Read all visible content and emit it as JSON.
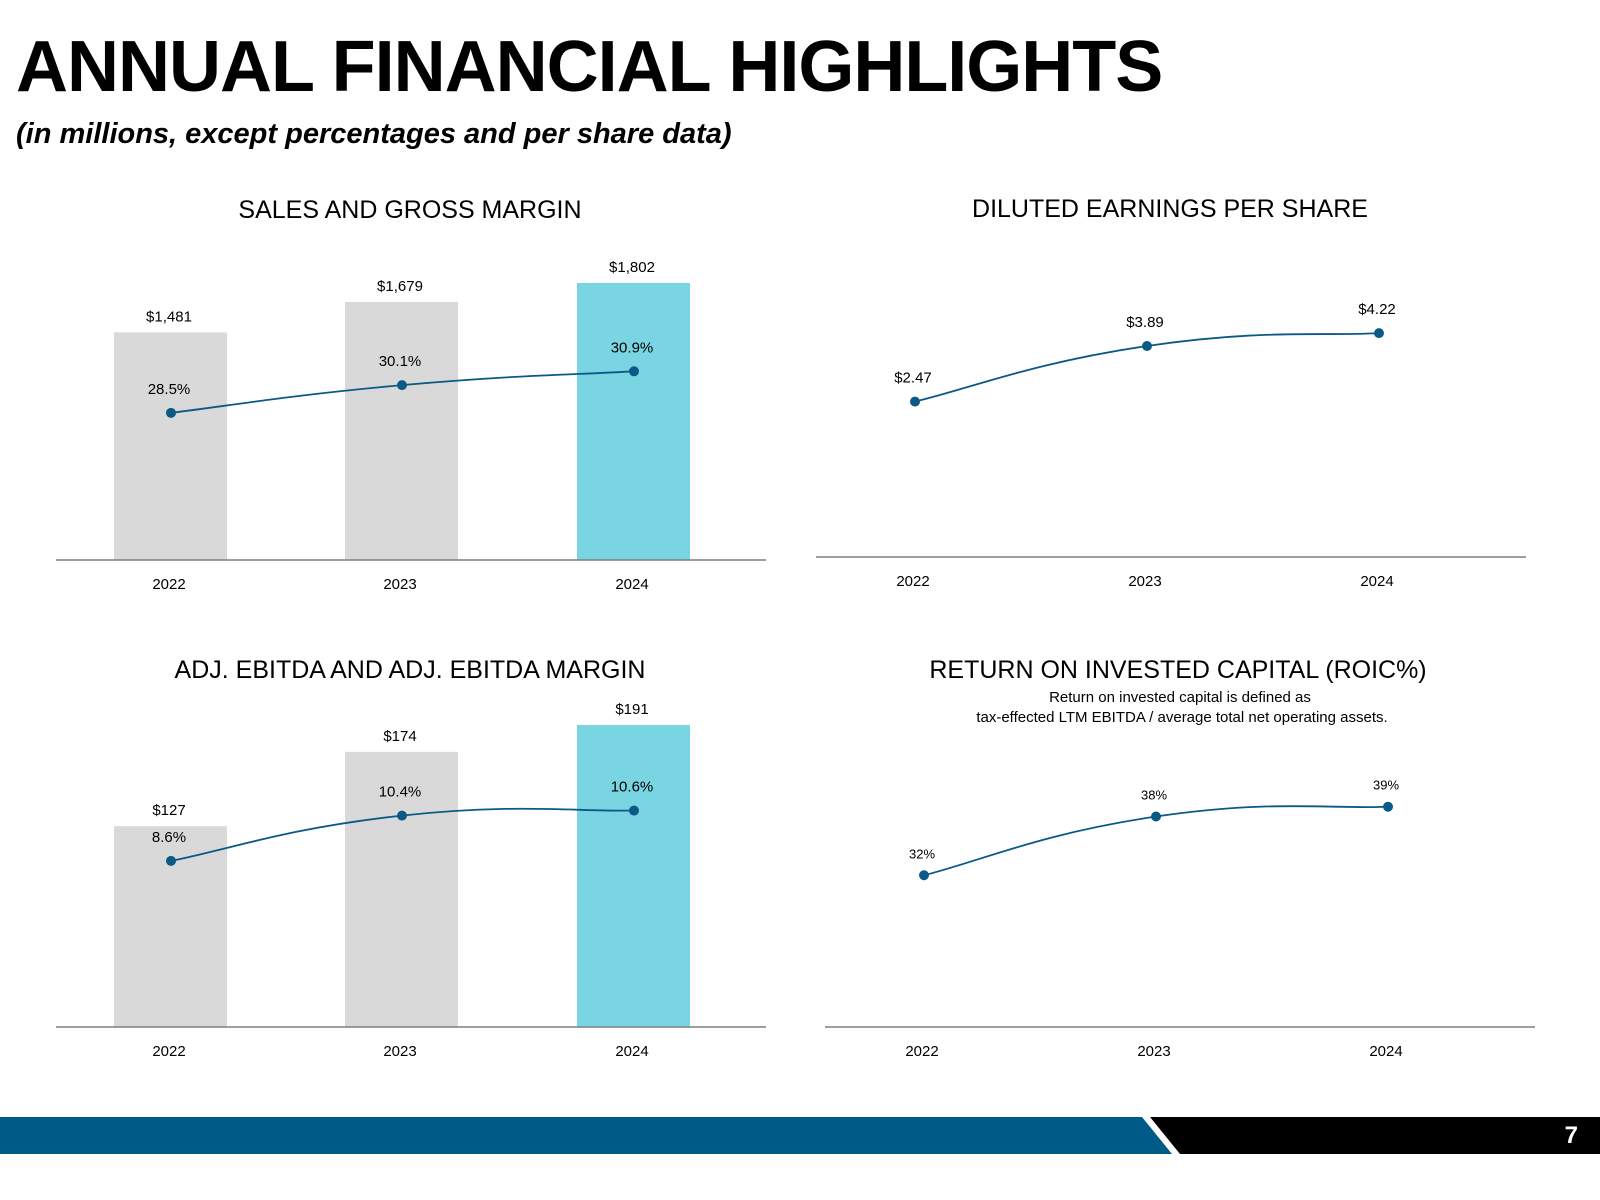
{
  "page": {
    "title": "ANNUAL FINANCIAL HIGHLIGHTS",
    "subtitle": "(in millions, except percentages and per share data)",
    "page_number": "7"
  },
  "colors": {
    "bar_default": "#d9d9d9",
    "bar_highlight": "#79d5e2",
    "line": "#0b5a85",
    "axis": "#7f7f7f",
    "footer_blue": "#005a87",
    "footer_black": "#000000"
  },
  "chart_data": [
    {
      "type": "bar",
      "title": "SALES AND GROSS MARGIN",
      "categories": [
        "2022",
        "2023",
        "2024"
      ],
      "series": [
        {
          "name": "Sales",
          "values": [
            1481,
            1679,
            1802
          ],
          "labels": [
            "$1,481",
            "$1,679",
            "$1,802"
          ]
        },
        {
          "name": "Gross Margin",
          "kind": "line",
          "values": [
            28.5,
            30.1,
            30.9
          ],
          "labels": [
            "28.5%",
            "30.1%",
            "30.9%"
          ]
        }
      ],
      "ylim": [
        0,
        1802
      ],
      "line_ylim": [
        20,
        36
      ]
    },
    {
      "type": "line",
      "title": "DILUTED EARNINGS PER SHARE",
      "categories": [
        "2022",
        "2023",
        "2024"
      ],
      "series": [
        {
          "name": "Diluted EPS",
          "values": [
            2.47,
            3.89,
            4.22
          ],
          "labels": [
            "$2.47",
            "$3.89",
            "$4.22"
          ]
        }
      ],
      "ylim": [
        -1.5,
        5.5
      ]
    },
    {
      "type": "bar",
      "title": "ADJ. EBITDA AND ADJ. EBITDA MARGIN",
      "categories": [
        "2022",
        "2023",
        "2024"
      ],
      "series": [
        {
          "name": "Adj. EBITDA",
          "values": [
            127,
            174,
            191
          ],
          "labels": [
            "$127",
            "$174",
            "$191"
          ]
        },
        {
          "name": "Adj. EBITDA Margin",
          "kind": "line",
          "values": [
            8.6,
            10.4,
            10.6
          ],
          "labels": [
            "8.6%",
            "10.4%",
            "10.6%"
          ]
        }
      ],
      "ylim": [
        0,
        191
      ],
      "line_ylim": [
        2,
        14
      ]
    },
    {
      "type": "line",
      "title": "RETURN ON INVESTED CAPITAL (ROIC%)",
      "note_lines": [
        "Return on invested capital is defined as",
        "tax-effected LTM EBITDA / average total net operating assets."
      ],
      "categories": [
        "2022",
        "2023",
        "2024"
      ],
      "series": [
        {
          "name": "ROIC",
          "values": [
            32,
            38,
            39
          ],
          "labels": [
            "32%",
            "38%",
            "39%"
          ]
        }
      ],
      "ylim": [
        16.5,
        45
      ]
    }
  ]
}
